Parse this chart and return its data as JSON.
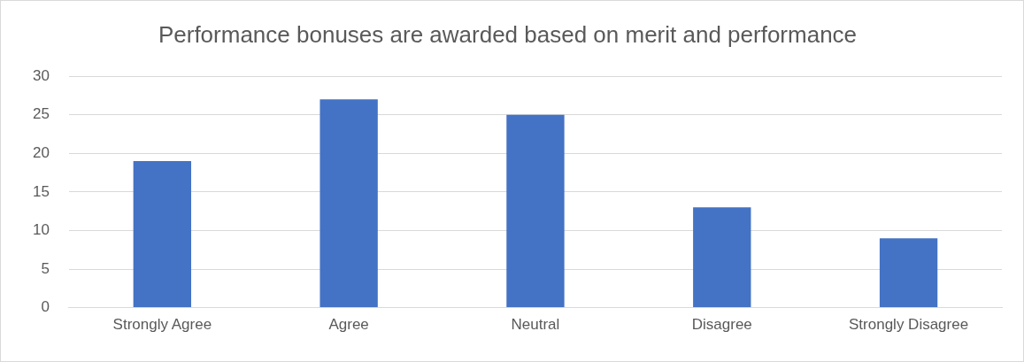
{
  "chart_data": {
    "type": "bar",
    "title": "Performance bonuses are awarded based on merit and performance",
    "categories": [
      "Strongly Agree",
      "Agree",
      "Neutral",
      "Disagree",
      "Strongly Disagree"
    ],
    "values": [
      19,
      27,
      25,
      13,
      9
    ],
    "color": "#4472c4",
    "ylim": [
      0,
      30
    ],
    "yticks": [
      0,
      5,
      10,
      15,
      20,
      25,
      30
    ],
    "grid": "y",
    "legend": false
  }
}
